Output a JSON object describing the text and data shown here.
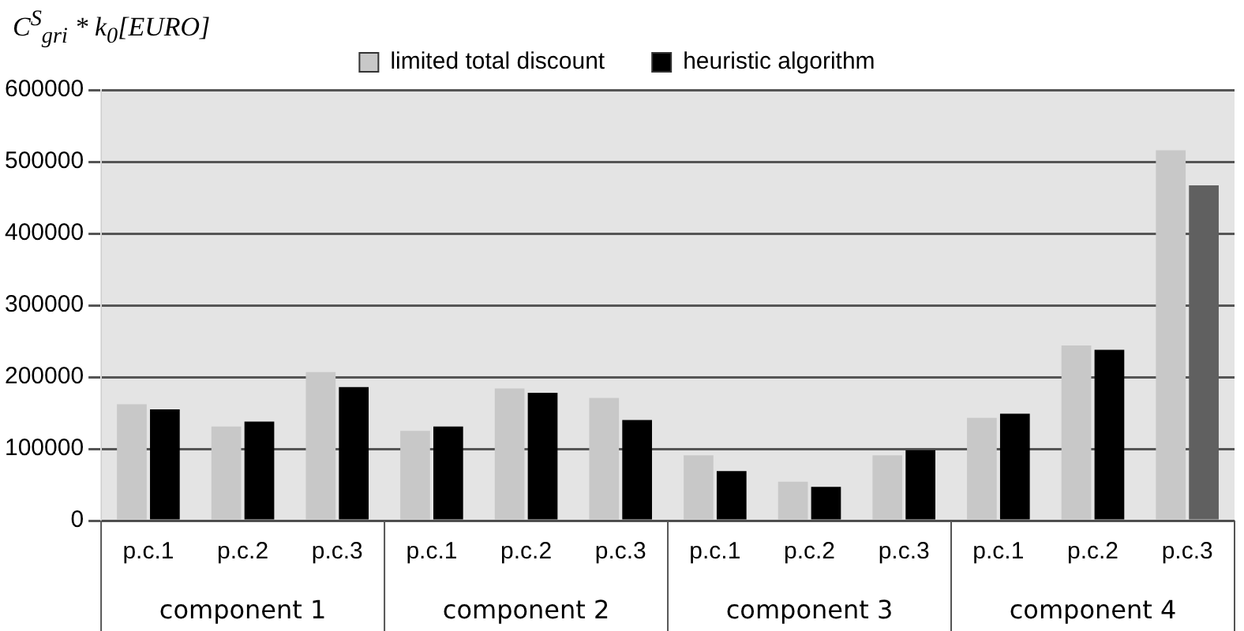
{
  "chart_data": {
    "type": "bar",
    "ylabel": "C$^{S}$$_{gri}$ * k$_{0}$[EURO]",
    "categories": [
      "p.c.1",
      "p.c.2",
      "p.c.3",
      "p.c.1",
      "p.c.2",
      "p.c.3",
      "p.c.1",
      "p.c.2",
      "p.c.3",
      "p.c.1",
      "p.c.2",
      "p.c.3"
    ],
    "annotations": [
      "component 1",
      "component 2",
      "component 3",
      "component 4"
    ],
    "series": [
      {
        "name": "limited total discount",
        "color": "#c8c8c8",
        "values": [
          162000,
          131000,
          207000,
          125000,
          184000,
          171000,
          91000,
          54000,
          91000,
          143000,
          244000,
          516000
        ]
      },
      {
        "name": "heuristic algorithm",
        "color": "#000000",
        "colors": [
          "#000000",
          "#000000",
          "#000000",
          "#000000",
          "#000000",
          "#000000",
          "#000000",
          "#000000",
          "#000000",
          "#000000",
          "#000000",
          "#606060"
        ],
        "values": [
          155000,
          138000,
          186000,
          131000,
          178000,
          140000,
          69000,
          47000,
          98000,
          149000,
          238000,
          467000
        ]
      }
    ],
    "ylim": [
      0,
      600000
    ],
    "yticks": [
      0,
      100000,
      200000,
      300000,
      400000,
      500000,
      600000
    ],
    "grid": "y",
    "legend": "top"
  }
}
